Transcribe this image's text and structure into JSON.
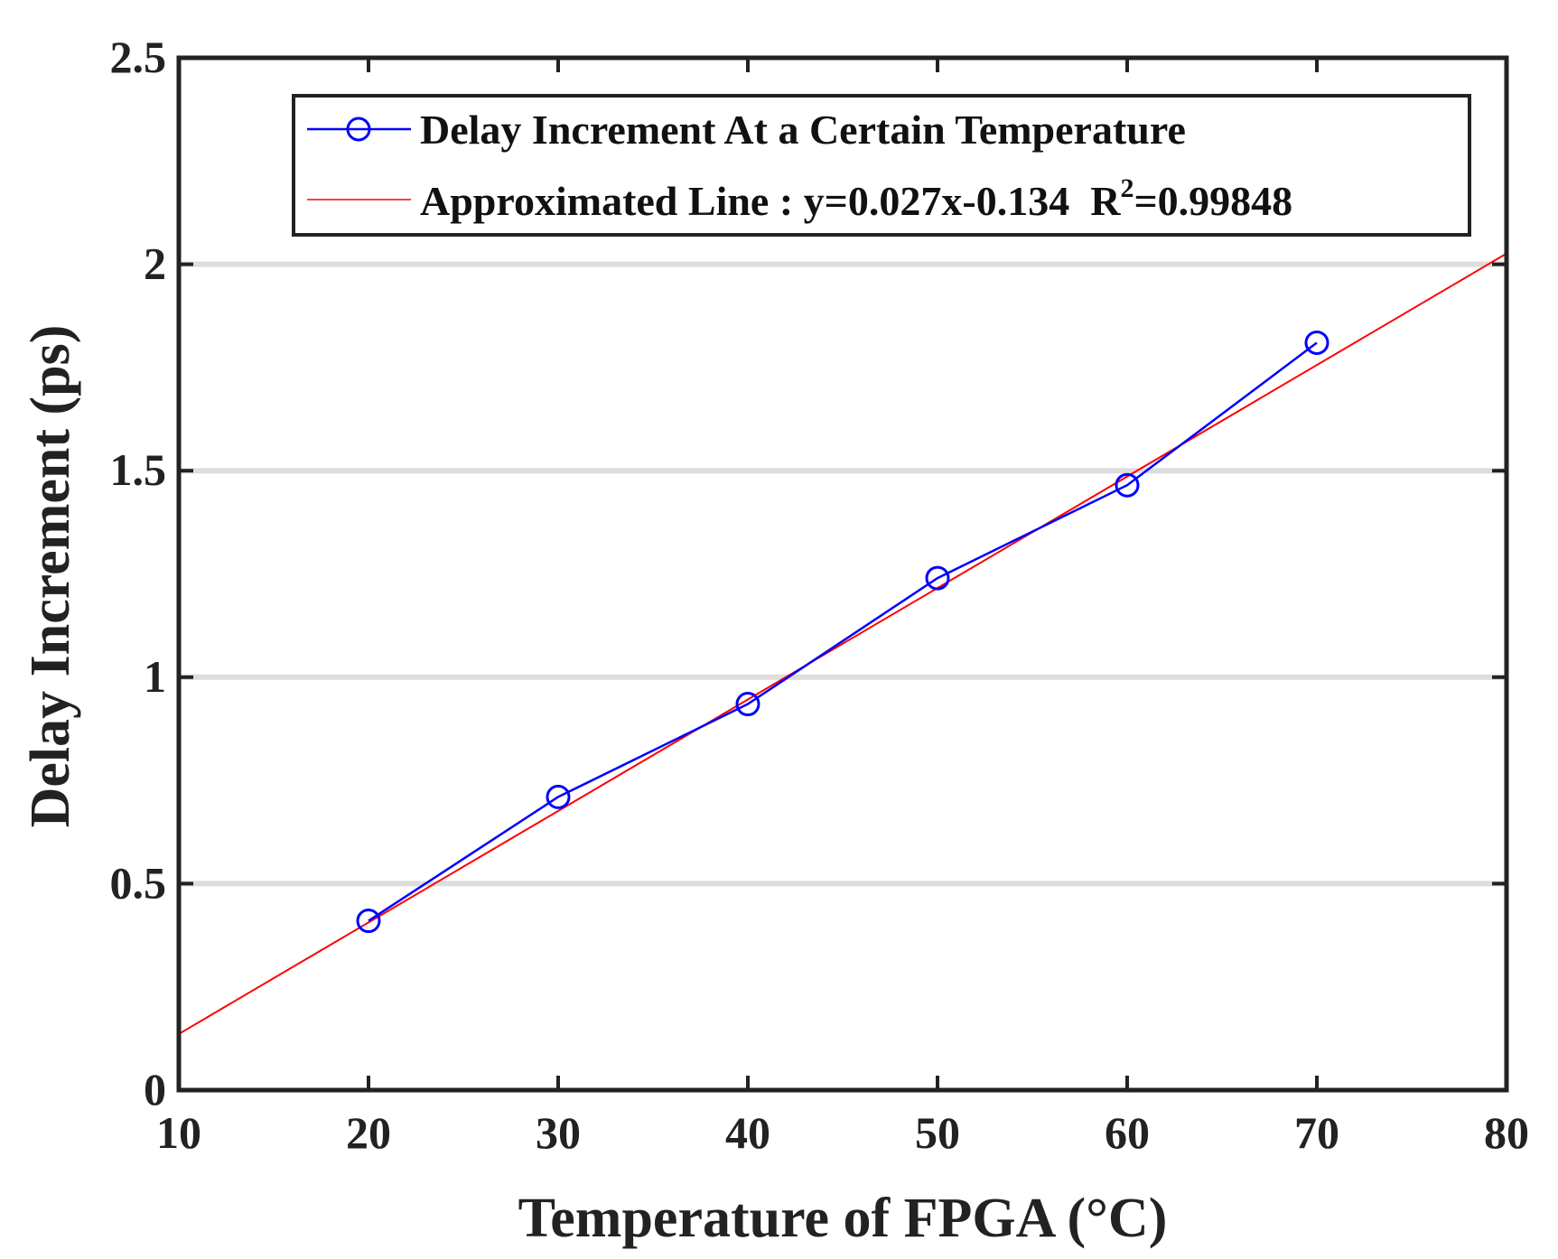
{
  "colors": {
    "measured": "#0000ff",
    "fit": "#ff0000",
    "axis": "#222222",
    "grid": "#dddddd"
  },
  "chart_data": {
    "type": "line",
    "xlabel": "Temperature of FPGA (°C)",
    "ylabel": "Delay Increment (ps)",
    "xlim": [
      10,
      80
    ],
    "ylim": [
      0,
      2.5
    ],
    "xticks": [
      "10",
      "20",
      "30",
      "40",
      "50",
      "60",
      "70",
      "80"
    ],
    "xtick_values": [
      10,
      20,
      30,
      40,
      50,
      60,
      70,
      80
    ],
    "yticks": [
      "0",
      "0.5",
      "1",
      "1.5",
      "2",
      "2.5"
    ],
    "ytick_values": [
      0,
      0.5,
      1,
      1.5,
      2,
      2.5
    ],
    "grid": "horizontal",
    "legend_position": "top-right",
    "series": [
      {
        "name": "Delay Increment At a Certain Temperature",
        "style": "line-with-circle-markers",
        "x": [
          20,
          30,
          40,
          50,
          60,
          70
        ],
        "y": [
          0.41,
          0.71,
          0.935,
          1.24,
          1.465,
          1.81
        ]
      },
      {
        "name": "Approximated Line : y=0.027x-0.134",
        "style": "line",
        "r_squared_label": "R",
        "r_squared_exponent": "2",
        "r_squared_value": "=0.99848",
        "x": [
          10,
          80
        ],
        "y": [
          0.136,
          2.026
        ]
      }
    ]
  }
}
